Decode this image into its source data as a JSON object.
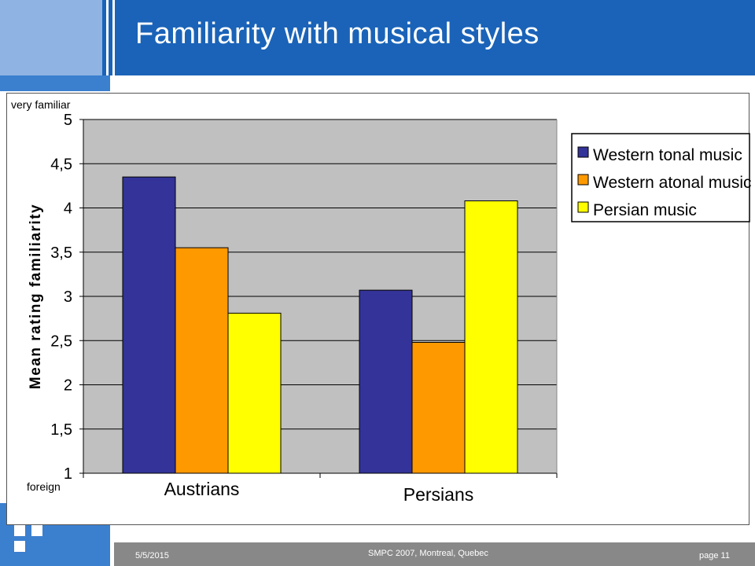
{
  "title": "Familiarity with musical styles",
  "footer": {
    "date": "5/5/2015",
    "center": "SMPC 2007, Montreal, Quebec",
    "page": "page 11"
  },
  "colors": {
    "header_blue": "#1a63b8",
    "plot_bg": "#c0c0c0",
    "series": [
      "#333399",
      "#ff9900",
      "#ffff00"
    ]
  },
  "chart_data": {
    "type": "bar",
    "categories": [
      "Austrians",
      "Persians"
    ],
    "series": [
      {
        "name": "Western tonal music",
        "values": [
          4.35,
          3.07
        ]
      },
      {
        "name": "Western atonal music",
        "values": [
          3.55,
          2.48
        ]
      },
      {
        "name": "Persian music",
        "values": [
          2.81,
          4.08
        ]
      }
    ],
    "ylabel": "Mean rating familiarity",
    "ylim": [
      1,
      5
    ],
    "yticks": [
      "1",
      "1,5",
      "2",
      "2,5",
      "3",
      "3,5",
      "4",
      "4,5",
      "5"
    ],
    "top_annotation": "very familiar",
    "bottom_annotation": "foreign",
    "grid": true,
    "legend": "top-right"
  }
}
